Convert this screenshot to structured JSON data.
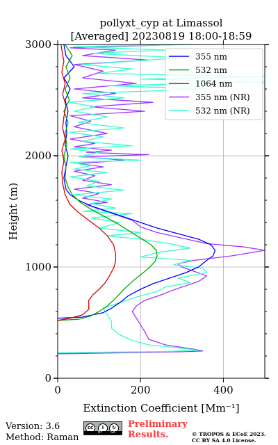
{
  "chart_data": {
    "type": "line",
    "title": "pollyxt_cyp at Limassol",
    "subtitle": "[Averaged] 20230819 18:00-18:59",
    "xlabel": "Extinction Coefficient [Mm⁻¹]",
    "ylabel": "Height (m)",
    "xlim": [
      0,
      500
    ],
    "ylim": [
      0,
      3000
    ],
    "xticks": [
      "0",
      "200",
      "400"
    ],
    "yticks": [
      "0",
      "1000",
      "2000",
      "3000"
    ],
    "grid": true,
    "legend_position": "top-right",
    "series": [
      {
        "name": "355 nm",
        "color": "#0000ff",
        "points": [
          [
            0,
            540
          ],
          [
            60,
            550
          ],
          [
            110,
            590
          ],
          [
            130,
            630
          ],
          [
            150,
            680
          ],
          [
            170,
            740
          ],
          [
            200,
            800
          ],
          [
            230,
            850
          ],
          [
            270,
            900
          ],
          [
            310,
            950
          ],
          [
            340,
            1000
          ],
          [
            360,
            1060
          ],
          [
            375,
            1100
          ],
          [
            380,
            1150
          ],
          [
            370,
            1200
          ],
          [
            340,
            1250
          ],
          [
            290,
            1300
          ],
          [
            240,
            1350
          ],
          [
            200,
            1400
          ],
          [
            160,
            1450
          ],
          [
            120,
            1500
          ],
          [
            80,
            1550
          ],
          [
            50,
            1600
          ],
          [
            30,
            1650
          ],
          [
            20,
            1700
          ],
          [
            15,
            1800
          ],
          [
            20,
            1900
          ],
          [
            25,
            2000
          ],
          [
            18,
            2100
          ],
          [
            22,
            2200
          ],
          [
            20,
            2300
          ],
          [
            25,
            2400
          ],
          [
            18,
            2500
          ],
          [
            30,
            2600
          ],
          [
            15,
            2700
          ],
          [
            40,
            2800
          ],
          [
            20,
            2900
          ],
          [
            15,
            3000
          ]
        ]
      },
      {
        "name": "532 nm",
        "color": "#00aa00",
        "points": [
          [
            0,
            520
          ],
          [
            50,
            530
          ],
          [
            80,
            560
          ],
          [
            100,
            600
          ],
          [
            120,
            650
          ],
          [
            140,
            720
          ],
          [
            160,
            800
          ],
          [
            180,
            870
          ],
          [
            200,
            930
          ],
          [
            220,
            990
          ],
          [
            235,
            1050
          ],
          [
            240,
            1100
          ],
          [
            238,
            1150
          ],
          [
            225,
            1200
          ],
          [
            200,
            1260
          ],
          [
            170,
            1330
          ],
          [
            140,
            1400
          ],
          [
            110,
            1460
          ],
          [
            80,
            1520
          ],
          [
            55,
            1580
          ],
          [
            35,
            1650
          ],
          [
            25,
            1720
          ],
          [
            18,
            1800
          ],
          [
            20,
            1900
          ],
          [
            15,
            2000
          ],
          [
            22,
            2100
          ],
          [
            18,
            2200
          ],
          [
            25,
            2300
          ],
          [
            15,
            2400
          ],
          [
            28,
            2500
          ],
          [
            18,
            2600
          ],
          [
            30,
            2700
          ],
          [
            20,
            2800
          ],
          [
            35,
            2900
          ],
          [
            18,
            3000
          ]
        ]
      },
      {
        "name": "1064 nm",
        "color": "#dd0000",
        "points": [
          [
            0,
            520
          ],
          [
            30,
            540
          ],
          [
            60,
            570
          ],
          [
            75,
            620
          ],
          [
            75,
            700
          ],
          [
            85,
            750
          ],
          [
            100,
            800
          ],
          [
            115,
            860
          ],
          [
            125,
            920
          ],
          [
            135,
            990
          ],
          [
            140,
            1050
          ],
          [
            140,
            1120
          ],
          [
            135,
            1200
          ],
          [
            120,
            1280
          ],
          [
            100,
            1350
          ],
          [
            75,
            1420
          ],
          [
            50,
            1490
          ],
          [
            30,
            1560
          ],
          [
            18,
            1650
          ],
          [
            12,
            1750
          ],
          [
            10,
            1850
          ],
          [
            15,
            1950
          ],
          [
            10,
            2050
          ],
          [
            18,
            2150
          ],
          [
            12,
            2250
          ],
          [
            15,
            2350
          ],
          [
            20,
            2450
          ],
          [
            12,
            2550
          ],
          [
            18,
            2650
          ],
          [
            10,
            2750
          ],
          [
            15,
            2850
          ],
          [
            10,
            2950
          ],
          [
            8,
            3000
          ]
        ]
      },
      {
        "name": "355 nm (NR)",
        "color": "#a033ff",
        "points": [
          [
            0,
            220
          ],
          [
            100,
            225
          ],
          [
            200,
            232
          ],
          [
            300,
            238
          ],
          [
            350,
            245
          ],
          [
            330,
            260
          ],
          [
            260,
            300
          ],
          [
            220,
            350
          ],
          [
            210,
            420
          ],
          [
            200,
            480
          ],
          [
            190,
            540
          ],
          [
            180,
            600
          ],
          [
            190,
            650
          ],
          [
            210,
            700
          ],
          [
            250,
            750
          ],
          [
            270,
            780
          ],
          [
            300,
            820
          ],
          [
            340,
            870
          ],
          [
            360,
            920
          ],
          [
            330,
            960
          ],
          [
            300,
            1000
          ],
          [
            290,
            1030
          ],
          [
            330,
            1060
          ],
          [
            420,
            1100
          ],
          [
            500,
            1150
          ],
          [
            450,
            1180
          ],
          [
            360,
            1210
          ],
          [
            300,
            1260
          ],
          [
            240,
            1310
          ],
          [
            200,
            1360
          ],
          [
            180,
            1420
          ],
          [
            140,
            1470
          ],
          [
            100,
            1520
          ],
          [
            70,
            1560
          ],
          [
            120,
            1580
          ],
          [
            60,
            1620
          ],
          [
            100,
            1660
          ],
          [
            40,
            1700
          ],
          [
            130,
            1740
          ],
          [
            60,
            1780
          ],
          [
            90,
            1820
          ],
          [
            40,
            1860
          ],
          [
            110,
            1900
          ],
          [
            50,
            1930
          ],
          [
            160,
            1960
          ],
          [
            60,
            1990
          ],
          [
            220,
            2010
          ],
          [
            70,
            2030
          ],
          [
            130,
            2050
          ],
          [
            40,
            2080
          ],
          [
            90,
            2110
          ],
          [
            30,
            2150
          ],
          [
            120,
            2200
          ],
          [
            40,
            2260
          ],
          [
            80,
            2310
          ],
          [
            30,
            2360
          ],
          [
            210,
            2400
          ],
          [
            80,
            2440
          ],
          [
            230,
            2480
          ],
          [
            60,
            2520
          ],
          [
            140,
            2560
          ],
          [
            40,
            2600
          ],
          [
            190,
            2650
          ],
          [
            60,
            2700
          ],
          [
            110,
            2760
          ],
          [
            40,
            2820
          ],
          [
            220,
            2860
          ],
          [
            60,
            2900
          ],
          [
            140,
            2950
          ],
          [
            30,
            2970
          ],
          [
            300,
            3000
          ]
        ]
      },
      {
        "name": "532 nm (NR)",
        "color": "#33ffcc",
        "points": [
          [
            0,
            230
          ],
          [
            120,
            235
          ],
          [
            250,
            240
          ],
          [
            340,
            250
          ],
          [
            300,
            270
          ],
          [
            220,
            300
          ],
          [
            180,
            340
          ],
          [
            150,
            390
          ],
          [
            130,
            450
          ],
          [
            130,
            510
          ],
          [
            120,
            570
          ],
          [
            110,
            630
          ],
          [
            150,
            680
          ],
          [
            190,
            730
          ],
          [
            240,
            780
          ],
          [
            260,
            820
          ],
          [
            320,
            860
          ],
          [
            290,
            900
          ],
          [
            360,
            950
          ],
          [
            350,
            990
          ],
          [
            280,
            1020
          ],
          [
            320,
            1060
          ],
          [
            200,
            1090
          ],
          [
            240,
            1130
          ],
          [
            320,
            1170
          ],
          [
            270,
            1210
          ],
          [
            200,
            1250
          ],
          [
            120,
            1280
          ],
          [
            200,
            1310
          ],
          [
            100,
            1350
          ],
          [
            150,
            1400
          ],
          [
            80,
            1440
          ],
          [
            180,
            1480
          ],
          [
            60,
            1500
          ],
          [
            140,
            1530
          ],
          [
            80,
            1570
          ],
          [
            130,
            1610
          ],
          [
            40,
            1650
          ],
          [
            160,
            1690
          ],
          [
            70,
            1730
          ],
          [
            100,
            1770
          ],
          [
            30,
            1810
          ],
          [
            120,
            1850
          ],
          [
            40,
            1880
          ],
          [
            80,
            1910
          ],
          [
            30,
            1940
          ],
          [
            200,
            1960
          ],
          [
            50,
            1990
          ],
          [
            100,
            2030
          ],
          [
            30,
            2060
          ],
          [
            180,
            2090
          ],
          [
            60,
            2130
          ],
          [
            110,
            2170
          ],
          [
            30,
            2210
          ],
          [
            160,
            2250
          ],
          [
            50,
            2300
          ],
          [
            120,
            2350
          ],
          [
            40,
            2400
          ],
          [
            90,
            2440
          ],
          [
            30,
            2480
          ],
          [
            160,
            2520
          ],
          [
            60,
            2560
          ],
          [
            360,
            2600
          ],
          [
            120,
            2630
          ],
          [
            500,
            2660
          ],
          [
            200,
            2690
          ],
          [
            500,
            2710
          ],
          [
            100,
            2740
          ],
          [
            180,
            2780
          ],
          [
            60,
            2820
          ],
          [
            300,
            2880
          ],
          [
            80,
            2920
          ],
          [
            260,
            2950
          ],
          [
            40,
            2980
          ],
          [
            330,
            3000
          ]
        ]
      }
    ]
  },
  "footer": {
    "version": "Version: 3.6",
    "method": "Method: Raman",
    "preliminary_line1": "Preliminary",
    "preliminary_line2": "Results.",
    "copyright_line1": "© TROPOS & ECoE 2023.",
    "copyright_line2": "CC BY SA 4.0 License.",
    "badge_by": "BY",
    "badge_sa": "SA"
  }
}
